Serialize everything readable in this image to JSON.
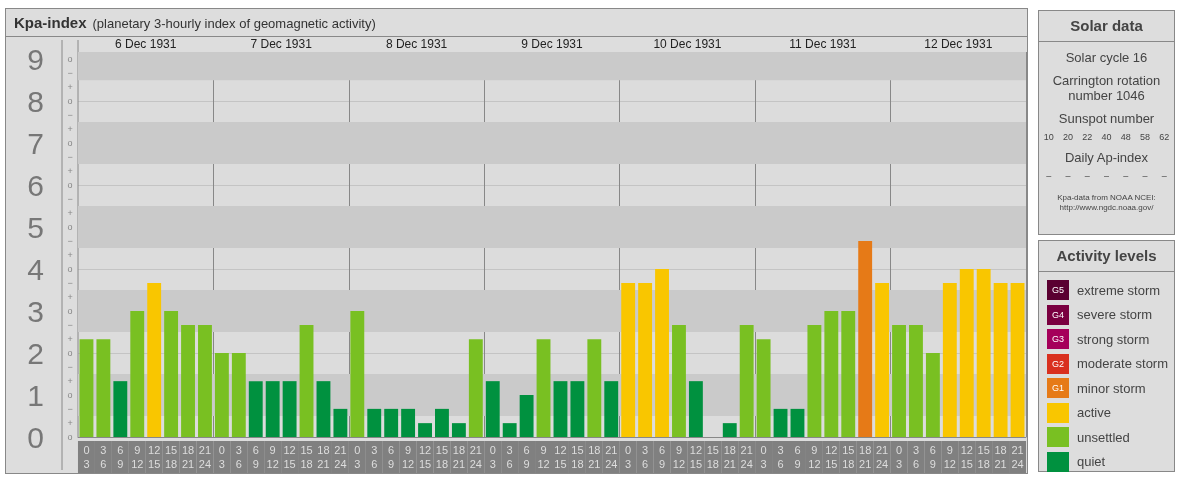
{
  "chart_data": {
    "type": "bar",
    "title": "Kpa-index",
    "subtitle": "(planetary 3-hourly index of geomagnetic activity)",
    "categories": [
      "0\n3",
      "3\n6",
      "6\n9",
      "9\n12",
      "12\n15",
      "15\n18",
      "18\n21",
      "21\n24",
      "0\n3",
      "3\n6",
      "6\n9",
      "9\n12",
      "12\n15",
      "15\n18",
      "18\n21",
      "21\n24",
      "0\n3",
      "3\n6",
      "6\n9",
      "9\n12",
      "12\n15",
      "15\n18",
      "18\n21",
      "21\n24",
      "0\n3",
      "3\n6",
      "6\n9",
      "9\n12",
      "12\n15",
      "15\n18",
      "18\n21",
      "21\n24",
      "0\n3",
      "3\n6",
      "6\n9",
      "9\n12",
      "12\n15",
      "15\n18",
      "18\n21",
      "21\n24",
      "0\n3",
      "3\n6",
      "6\n9",
      "9\n12",
      "12\n15",
      "15\n18",
      "18\n21",
      "21\n24",
      "0\n3",
      "3\n6",
      "6\n9",
      "9\n12",
      "12\n15",
      "15\n18",
      "18\n21",
      "21\n24"
    ],
    "series": [
      {
        "name": "G5 extreme storm",
        "color": "#5a0031",
        "values": [
          null,
          null,
          null,
          null,
          null,
          null,
          null,
          null,
          null,
          null,
          null,
          null,
          null,
          null,
          null,
          null,
          null,
          null,
          null,
          null,
          null,
          null,
          null,
          null,
          null,
          null,
          null,
          null,
          null,
          null,
          null,
          null,
          null,
          null,
          null,
          null,
          null,
          null,
          null,
          null,
          null,
          null,
          null,
          null,
          null,
          null,
          null,
          null,
          null,
          null,
          null,
          null,
          null,
          null,
          null,
          null
        ]
      },
      {
        "name": "G4 severe storm",
        "color": "#7a0040",
        "values": [
          null,
          null,
          null,
          null,
          null,
          null,
          null,
          null,
          null,
          null,
          null,
          null,
          null,
          null,
          null,
          null,
          null,
          null,
          null,
          null,
          null,
          null,
          null,
          null,
          null,
          null,
          null,
          null,
          null,
          null,
          null,
          null,
          null,
          null,
          null,
          null,
          null,
          null,
          null,
          null,
          null,
          null,
          null,
          null,
          null,
          null,
          null,
          null,
          null,
          null,
          null,
          null,
          null,
          null,
          null,
          null
        ]
      },
      {
        "name": "G3 strong storm",
        "color": "#a5005a",
        "values": [
          null,
          null,
          null,
          null,
          null,
          null,
          null,
          null,
          null,
          null,
          null,
          null,
          null,
          null,
          null,
          null,
          null,
          null,
          null,
          null,
          null,
          null,
          null,
          null,
          null,
          null,
          null,
          null,
          null,
          null,
          null,
          null,
          null,
          null,
          null,
          null,
          null,
          null,
          null,
          null,
          null,
          null,
          null,
          null,
          null,
          null,
          null,
          null,
          null,
          null,
          null,
          null,
          null,
          null,
          null,
          null
        ]
      },
      {
        "name": "G2 moderate storm",
        "color": "#d9301f",
        "values": [
          null,
          null,
          null,
          null,
          null,
          null,
          null,
          null,
          null,
          null,
          null,
          null,
          null,
          null,
          null,
          null,
          null,
          null,
          null,
          null,
          null,
          null,
          null,
          null,
          null,
          null,
          null,
          null,
          null,
          null,
          null,
          null,
          null,
          null,
          null,
          null,
          null,
          null,
          null,
          null,
          null,
          null,
          null,
          null,
          null,
          null,
          null,
          null,
          null,
          null,
          null,
          null,
          null,
          null,
          null,
          null
        ]
      },
      {
        "name": "G1 minor storm",
        "color": "#e67a17",
        "values": [
          null,
          null,
          null,
          null,
          null,
          null,
          null,
          null,
          null,
          null,
          null,
          null,
          null,
          null,
          null,
          null,
          null,
          null,
          null,
          null,
          null,
          null,
          null,
          null,
          null,
          null,
          null,
          null,
          null,
          null,
          null,
          null,
          null,
          null,
          null,
          null,
          null,
          null,
          null,
          null,
          null,
          null,
          null,
          null,
          null,
          null,
          4.67,
          null,
          null,
          null,
          null,
          null,
          null,
          null,
          null,
          null
        ]
      },
      {
        "name": "active",
        "color": "#f9c600",
        "values": [
          null,
          null,
          null,
          null,
          3.67,
          null,
          null,
          null,
          null,
          null,
          null,
          null,
          null,
          null,
          null,
          null,
          null,
          null,
          null,
          null,
          null,
          null,
          null,
          null,
          null,
          null,
          null,
          null,
          null,
          null,
          null,
          null,
          3.67,
          3.67,
          4,
          null,
          null,
          null,
          null,
          null,
          null,
          null,
          null,
          null,
          null,
          null,
          null,
          3.67,
          null,
          null,
          null,
          3.67,
          4,
          4,
          3.67,
          3.67
        ]
      },
      {
        "name": "unsettled",
        "color": "#79c022",
        "values": [
          2.33,
          2.33,
          null,
          3,
          null,
          3,
          2.67,
          2.67,
          2,
          2,
          null,
          null,
          null,
          2.67,
          null,
          null,
          3,
          null,
          null,
          null,
          null,
          null,
          null,
          2.33,
          null,
          null,
          null,
          2.33,
          null,
          null,
          2.33,
          null,
          null,
          null,
          null,
          2.67,
          null,
          null,
          null,
          2.67,
          2.33,
          null,
          null,
          2.67,
          3,
          3,
          null,
          null,
          2.67,
          2.67,
          2,
          null,
          null,
          null,
          null,
          null
        ]
      },
      {
        "name": "quiet",
        "color": "#00913f",
        "values": [
          null,
          null,
          1.33,
          null,
          null,
          null,
          null,
          null,
          null,
          null,
          1.33,
          1.33,
          1.33,
          null,
          1.33,
          0.67,
          null,
          0.67,
          0.67,
          0.67,
          0.33,
          0.67,
          0.33,
          null,
          1.33,
          0.33,
          1,
          null,
          1.33,
          1.33,
          null,
          1.33,
          null,
          null,
          null,
          null,
          1.33,
          0,
          0.33,
          null,
          null,
          0.67,
          0.67,
          null,
          null,
          null,
          null,
          null,
          null,
          null,
          null,
          null,
          null,
          null,
          null,
          null
        ]
      }
    ],
    "ylim": [
      0,
      9.17
    ],
    "yticks": [
      0,
      1,
      2,
      3,
      4,
      5,
      6,
      7,
      8,
      9
    ],
    "bands": [
      {
        "axis": "y",
        "from": 0.5,
        "to": 1.5,
        "color": "#cacaca"
      },
      {
        "axis": "y",
        "from": 2.5,
        "to": 3.5,
        "color": "#cacaca"
      },
      {
        "axis": "y",
        "from": 4.5,
        "to": 5.5,
        "color": "#cacaca"
      },
      {
        "axis": "y",
        "from": 6.5,
        "to": 7.5,
        "color": "#cacaca"
      },
      {
        "axis": "y",
        "from": 8.5,
        "to": 9.17,
        "color": "#cacaca"
      }
    ],
    "grid": "y",
    "legend": "right",
    "legend_title": "Activity levels",
    "annotations": [
      "6 Dec 1931",
      "7 Dec 1931",
      "8 Dec 1931",
      "9 Dec 1931",
      "10 Dec 1931",
      "11 Dec 1931",
      "12 Dec 1931",
      "Solar data",
      "Solar cycle 16",
      "Carrington rotation number 1046",
      "Sunspot number",
      "10 20 22 40 48 58 62",
      "Daily Ap-index",
      "– – – – – – –",
      "Kpa-data from NOAA NCEI: http://www.ngdc.noaa.gov/",
      "o",
      "+",
      "−",
      "o",
      "+",
      "−",
      "o",
      "+",
      "−",
      "o",
      "+",
      "−",
      "o",
      "+",
      "−",
      "o",
      "+",
      "−",
      "o",
      "+",
      "−",
      "o",
      "+",
      "−",
      "o",
      "+",
      "−",
      "o"
    ]
  }
}
